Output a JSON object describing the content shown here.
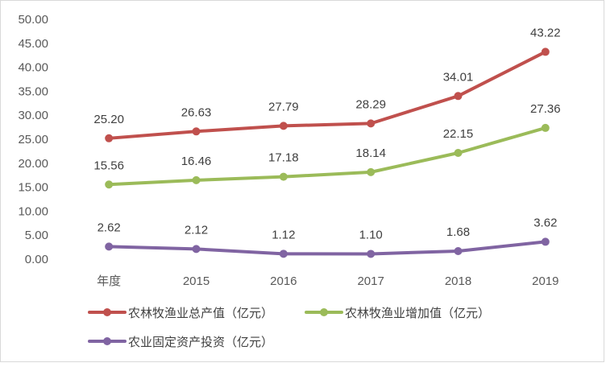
{
  "chart_data": {
    "type": "line",
    "categories": [
      "年度",
      "2015",
      "2016",
      "2017",
      "2018",
      "2019"
    ],
    "ylim": [
      0,
      50
    ],
    "yticks": [
      "0.00",
      "5.00",
      "10.00",
      "15.00",
      "20.00",
      "25.00",
      "30.00",
      "35.00",
      "40.00",
      "45.00",
      "50.00"
    ],
    "grid": false,
    "legend_position": "bottom",
    "series": [
      {
        "name": "农林牧渔业总产值（亿元）",
        "color": "#c0504d",
        "values": [
          25.2,
          26.63,
          27.79,
          28.29,
          34.01,
          43.22
        ],
        "labels": [
          "25.20",
          "26.63",
          "27.79",
          "28.29",
          "34.01",
          "43.22"
        ]
      },
      {
        "name": "农林牧渔业增加值（亿元）",
        "color": "#9bbb59",
        "values": [
          15.56,
          16.46,
          17.18,
          18.14,
          22.15,
          27.36
        ],
        "labels": [
          "15.56",
          "16.46",
          "17.18",
          "18.14",
          "22.15",
          "27.36"
        ]
      },
      {
        "name": "农业固定资产投资（亿元）",
        "color": "#8064a2",
        "values": [
          2.62,
          2.12,
          1.12,
          1.1,
          1.68,
          3.62
        ],
        "labels": [
          "2.62",
          "2.12",
          "1.12",
          "1.10",
          "1.68",
          "3.62"
        ]
      }
    ]
  }
}
